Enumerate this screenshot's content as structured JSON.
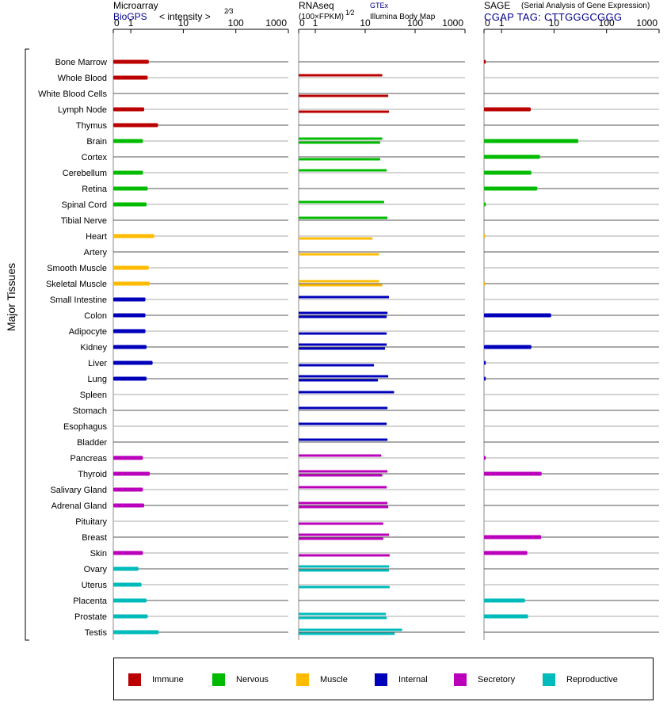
{
  "headers": {
    "microarray_title": "Microarray",
    "microarray_source": "BioGPS",
    "microarray_scale": "< intensity >",
    "microarray_exp": "2⁄3",
    "rnaseq_title": "RNAseq",
    "rnaseq_scale": "(100×FPKM)",
    "rnaseq_exp": "1⁄2",
    "rnaseq_gtex": "GTEx",
    "rnaseq_ibm": "Illumina Body Map",
    "sage_title": "SAGE",
    "sage_desc": "(Serial Analysis of Gene Expression)",
    "sage_tag": "CGAP TAG: CTTGGGCGGG"
  },
  "y_axis_label": "Major Tissues",
  "colors": {
    "Immune": "#bb0000",
    "Nervous": "#00bb00",
    "Muscle": "#ffbb00",
    "Internal": "#0000bb",
    "Secretory": "#bb00bb",
    "Reproductive": "#00bbbb"
  },
  "legend": [
    {
      "label": "Immune",
      "color": "#bb0000"
    },
    {
      "label": "Nervous",
      "color": "#00bb00"
    },
    {
      "label": "Muscle",
      "color": "#ffbb00"
    },
    {
      "label": "Internal",
      "color": "#0000bb"
    },
    {
      "label": "Secretory",
      "color": "#bb00bb"
    },
    {
      "label": "Reproductive",
      "color": "#00bbbb"
    }
  ],
  "chart_data": {
    "type": "bar",
    "orientation": "horizontal",
    "axis_ticks": [
      "0",
      "1",
      "10",
      "100",
      "1000"
    ],
    "xlim": [
      0,
      1000
    ],
    "categories": [
      "Bone Marrow",
      "Whole Blood",
      "White Blood Cells",
      "Lymph Node",
      "Thymus",
      "Brain",
      "Cortex",
      "Cerebellum",
      "Retina",
      "Spinal Cord",
      "Tibial Nerve",
      "Heart",
      "Artery",
      "Smooth Muscle",
      "Skeletal Muscle",
      "Small Intestine",
      "Colon",
      "Adipocyte",
      "Kidney",
      "Liver",
      "Lung",
      "Spleen",
      "Stomach",
      "Esophagus",
      "Bladder",
      "Pancreas",
      "Thyroid",
      "Salivary Gland",
      "Adrenal Gland",
      "Pituitary",
      "Breast",
      "Skin",
      "Ovary",
      "Uterus",
      "Placenta",
      "Prostate",
      "Testis"
    ],
    "groups": [
      "Immune",
      "Immune",
      "Immune",
      "Immune",
      "Immune",
      "Nervous",
      "Nervous",
      "Nervous",
      "Nervous",
      "Nervous",
      "Nervous",
      "Muscle",
      "Muscle",
      "Muscle",
      "Muscle",
      "Internal",
      "Internal",
      "Internal",
      "Internal",
      "Internal",
      "Internal",
      "Internal",
      "Internal",
      "Internal",
      "Internal",
      "Secretory",
      "Secretory",
      "Secretory",
      "Secretory",
      "Secretory",
      "Secretory",
      "Secretory",
      "Reproductive",
      "Reproductive",
      "Reproductive",
      "Reproductive",
      "Reproductive"
    ],
    "series": [
      {
        "name": "Microarray",
        "values": [
          2.2,
          2.1,
          null,
          1.8,
          3.3,
          1.7,
          null,
          1.7,
          2.1,
          2.0,
          null,
          2.8,
          null,
          2.2,
          2.3,
          1.9,
          1.9,
          1.9,
          2.0,
          2.6,
          2.0,
          null,
          null,
          null,
          null,
          1.7,
          2.3,
          1.7,
          1.8,
          null,
          null,
          1.7,
          1.4,
          1.6,
          2.0,
          2.1,
          3.4
        ]
      },
      {
        "name": "GTEx",
        "values": [
          null,
          22,
          null,
          null,
          null,
          22,
          null,
          27,
          null,
          24,
          28,
          null,
          null,
          null,
          19,
          30,
          28,
          null,
          27,
          null,
          29,
          38,
          28,
          27,
          28,
          21,
          28,
          27,
          28,
          null,
          30,
          null,
          30,
          null,
          null,
          26,
          55
        ]
      },
      {
        "name": "Illumina Body Map",
        "values": [
          null,
          null,
          29,
          30,
          null,
          20,
          20,
          null,
          null,
          null,
          null,
          14,
          19,
          null,
          22,
          null,
          27,
          27,
          25,
          15,
          18,
          null,
          null,
          null,
          null,
          null,
          22,
          null,
          29,
          23,
          23,
          31,
          30,
          31,
          null,
          27,
          39
        ]
      },
      {
        "name": "SAGE",
        "values": [
          0.1,
          null,
          null,
          3.6,
          null,
          29,
          5.4,
          3.7,
          4.8,
          0.1,
          null,
          0,
          null,
          null,
          0,
          null,
          8.8,
          null,
          3.7,
          0.1,
          0.1,
          null,
          null,
          null,
          null,
          0.1,
          5.8,
          null,
          null,
          null,
          5.7,
          3.1,
          null,
          null,
          2.8,
          3.2,
          null
        ]
      }
    ]
  }
}
